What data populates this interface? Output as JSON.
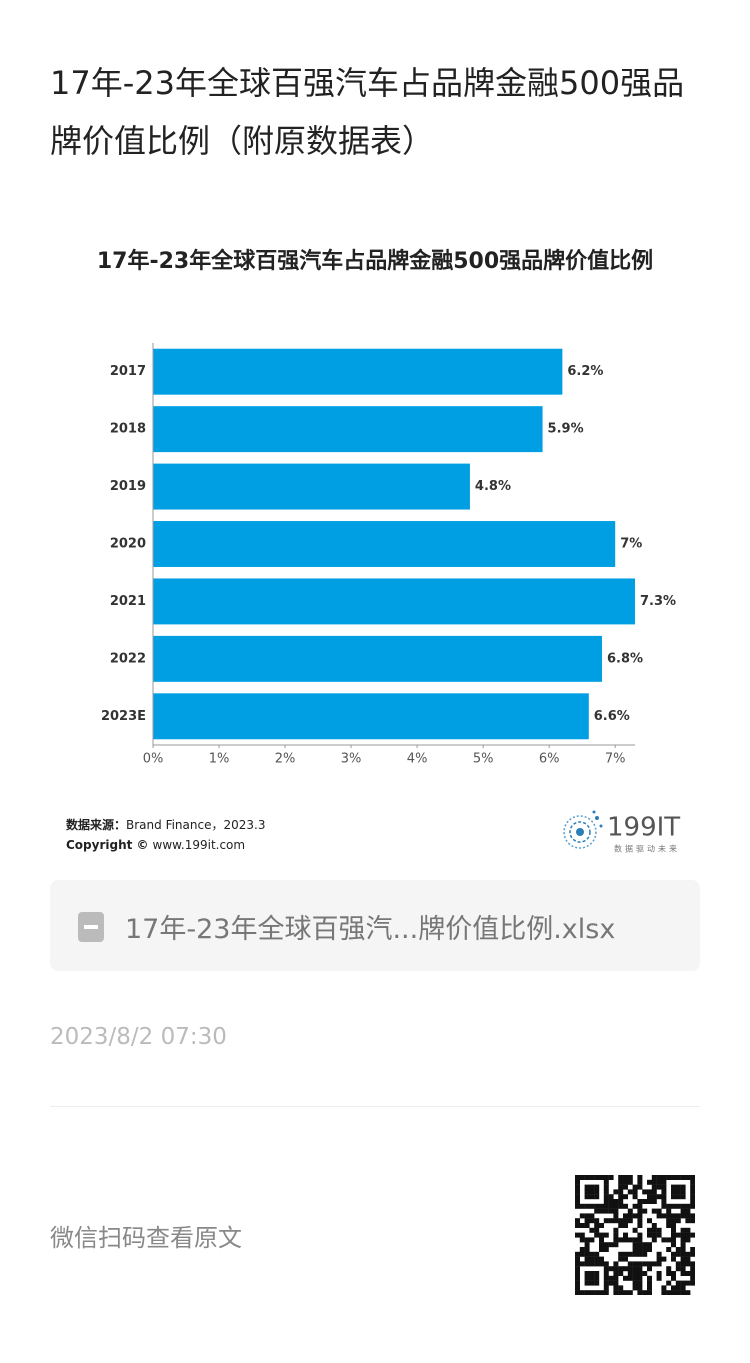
{
  "header": {
    "title": "17年-23年全球百强汽车占品牌金融500强品牌价值比例（附原数据表）"
  },
  "chart_data": {
    "type": "bar",
    "orientation": "horizontal",
    "title": "17年-23年全球百强汽车占品牌金融500强品牌价值比例",
    "categories": [
      "2017",
      "2018",
      "2019",
      "2020",
      "2021",
      "2022",
      "2023E"
    ],
    "values": [
      6.2,
      5.9,
      4.8,
      7,
      7.3,
      6.8,
      6.6
    ],
    "value_labels": [
      "6.2%",
      "5.9%",
      "4.8%",
      "7%",
      "7.3%",
      "6.8%",
      "6.6%"
    ],
    "color": "#009fe3",
    "xlim": [
      0,
      7.3
    ],
    "xticks": [
      {
        "value": 0,
        "label": "0%"
      },
      {
        "value": 1,
        "label": "1%"
      },
      {
        "value": 2,
        "label": "2%"
      },
      {
        "value": 3,
        "label": "3%"
      },
      {
        "value": 4,
        "label": "4%"
      },
      {
        "value": 5,
        "label": "5%"
      },
      {
        "value": 6,
        "label": "6%"
      },
      {
        "value": 7,
        "label": "7%"
      }
    ],
    "grid": false
  },
  "source": {
    "label": "数据来源：",
    "text": "Brand Finance，2023.3"
  },
  "copyright": {
    "label": "Copyright ©",
    "text": "www.199it.com"
  },
  "logo": {
    "name": "199IT",
    "slogan": "数据驱动未来"
  },
  "attachment": {
    "file": "17年-23年全球百强汽...牌价值比例.xlsx"
  },
  "meta": {
    "date": "2023/8/2 07:30"
  },
  "footer": {
    "text": "微信扫码查看原文"
  }
}
